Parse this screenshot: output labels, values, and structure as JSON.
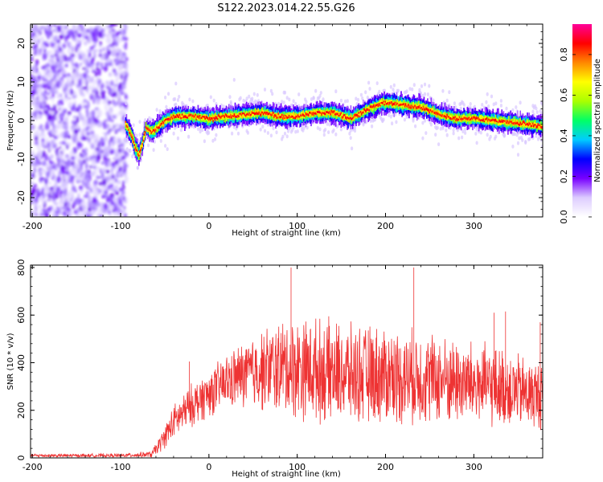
{
  "title": "S122.2023.014.22.55.G26",
  "chart_data": [
    {
      "type": "heatmap",
      "name": "spectrogram",
      "xlabel": "Height of straight line (km)",
      "ylabel": "Frequency (Hz)",
      "xlim": [
        -202,
        378
      ],
      "ylim": [
        -25,
        25
      ],
      "x_ticks": [
        -200,
        -100,
        0,
        100,
        200,
        300
      ],
      "x_tick_labels": [
        "-200",
        "-100",
        "0",
        "100",
        "200",
        "300"
      ],
      "y_ticks": [
        -20,
        -10,
        0,
        10,
        20
      ],
      "y_tick_labels": [
        "-20",
        "-10",
        "0",
        "10",
        "20"
      ],
      "noise_region_x": [
        -202,
        -93
      ],
      "ridge_frequency_trace": {
        "x": [
          -95,
          -88,
          -84,
          -80,
          -76,
          -72,
          -66,
          -60,
          -50,
          -40,
          -20,
          0,
          20,
          40,
          60,
          80,
          100,
          120,
          140,
          160,
          180,
          195,
          205,
          220,
          240,
          260,
          280,
          300,
          320,
          340,
          360,
          378
        ],
        "y": [
          -1,
          -4,
          -7,
          -9,
          -6,
          -2,
          -3,
          -2,
          0,
          1,
          1,
          0.5,
          1,
          1.5,
          2,
          1,
          1,
          2,
          2,
          0.5,
          3,
          4.5,
          4.5,
          4,
          3.5,
          1.5,
          0.5,
          0.5,
          0,
          -0.5,
          -1,
          -1.5
        ]
      },
      "colorbar": {
        "label": "Normalized spectral amplitude",
        "range": [
          0,
          0.95
        ],
        "ticks": [
          0.0,
          0.2,
          0.4,
          0.6,
          0.8
        ],
        "tick_labels": [
          "0.0",
          "0.2",
          "0.4",
          "0.6",
          "0.8"
        ],
        "colormap": [
          "#ffffff",
          "#ddccff",
          "#7700ff",
          "#0000ff",
          "#00ccff",
          "#00ff66",
          "#aaff00",
          "#ffff00",
          "#ff8800",
          "#ff0000",
          "#ff0099"
        ]
      }
    },
    {
      "type": "line",
      "name": "snr",
      "xlabel": "Height of straight line (km)",
      "ylabel": "SNR (10 * v/v)",
      "xlim": [
        -202,
        378
      ],
      "ylim": [
        0,
        810
      ],
      "x_ticks": [
        -200,
        -100,
        0,
        100,
        200,
        300
      ],
      "x_tick_labels": [
        "-200",
        "-100",
        "0",
        "100",
        "200",
        "300"
      ],
      "y_ticks": [
        0,
        200,
        400,
        600,
        800
      ],
      "y_tick_labels": [
        "0",
        "200",
        "400",
        "600",
        "800"
      ],
      "color": "#ee3333",
      "envelope": {
        "x": [
          -202,
          -100,
          -65,
          -55,
          -40,
          -20,
          0,
          20,
          40,
          60,
          80,
          100,
          120,
          140,
          160,
          180,
          200,
          220,
          240,
          260,
          280,
          300,
          320,
          340,
          360,
          378
        ],
        "mean": [
          10,
          10,
          15,
          60,
          150,
          220,
          270,
          320,
          350,
          370,
          380,
          380,
          370,
          360,
          350,
          350,
          350,
          340,
          340,
          330,
          320,
          310,
          300,
          290,
          270,
          260
        ],
        "spread": [
          8,
          8,
          15,
          40,
          80,
          100,
          110,
          130,
          160,
          190,
          220,
          240,
          240,
          240,
          230,
          230,
          230,
          220,
          220,
          210,
          200,
          200,
          190,
          180,
          170,
          160
        ]
      },
      "peaks": [
        {
          "x": 93,
          "y": 800
        },
        {
          "x": 232,
          "y": 800
        },
        {
          "x": 336,
          "y": 615
        },
        {
          "x": 323,
          "y": 610
        },
        {
          "x": 375,
          "y": 570
        },
        {
          "x": -22,
          "y": 405
        }
      ]
    }
  ]
}
